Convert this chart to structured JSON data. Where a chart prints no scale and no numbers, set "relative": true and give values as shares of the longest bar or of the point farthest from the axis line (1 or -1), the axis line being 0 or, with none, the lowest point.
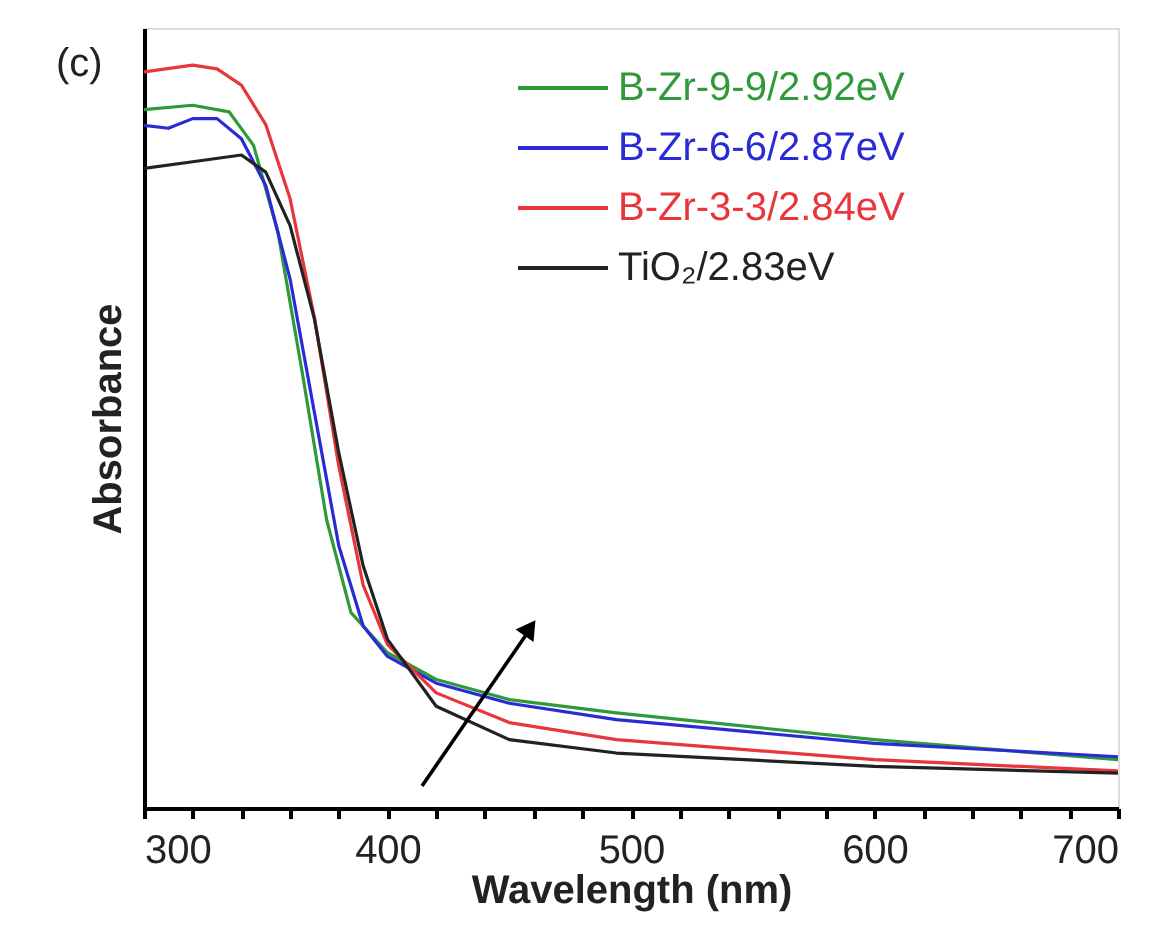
{
  "chart_data": {
    "type": "line",
    "xlabel": "Wavelength (nm)",
    "ylabel": "Absorbance",
    "relative": true,
    "annotations": [
      "(c)"
    ],
    "xlim": [
      300,
      700
    ],
    "xticks": [
      300,
      {
        "value": 320,
        "label": null
      },
      {
        "value": 340,
        "label": null
      },
      {
        "value": 360,
        "label": null
      },
      {
        "value": 380,
        "label": null
      },
      400,
      {
        "value": 420,
        "label": null
      },
      {
        "value": 440,
        "label": null
      },
      {
        "value": 460,
        "label": null
      },
      {
        "value": 480,
        "label": null
      },
      500,
      {
        "value": 520,
        "label": null
      },
      {
        "value": 540,
        "label": null
      },
      {
        "value": 560,
        "label": null
      },
      {
        "value": 580,
        "label": null
      },
      600,
      {
        "value": 620,
        "label": null
      },
      {
        "value": 640,
        "label": null
      },
      {
        "value": 660,
        "label": null
      },
      {
        "value": 680,
        "label": null
      },
      700
    ],
    "legend": "top right",
    "grid": false,
    "marker": "none",
    "line_style": "solid",
    "series": [
      {
        "name": "B-Zr-9-9/2.92eV",
        "color": "#2e9a3a",
        "x": [
          300,
          320,
          335,
          345,
          355,
          365,
          375,
          385,
          400,
          420,
          450,
          494,
          600,
          700
        ],
        "values": [
          0.94,
          0.946,
          0.937,
          0.892,
          0.775,
          0.586,
          0.388,
          0.263,
          0.209,
          0.173,
          0.146,
          0.128,
          0.092,
          0.065
        ]
      },
      {
        "name": "B-Zr-6-6/2.87eV",
        "color": "#2a2ad6",
        "x": [
          300,
          310,
          320,
          330,
          340,
          350,
          360,
          370,
          380,
          390,
          400,
          420,
          450,
          494,
          600,
          700
        ],
        "values": [
          0.919,
          0.915,
          0.928,
          0.928,
          0.901,
          0.838,
          0.712,
          0.532,
          0.353,
          0.245,
          0.204,
          0.168,
          0.141,
          0.119,
          0.087,
          0.069
        ]
      },
      {
        "name": "B-Zr-3-3/2.84eV",
        "color": "#e8363a",
        "x": [
          300,
          320,
          330,
          340,
          350,
          360,
          370,
          380,
          390,
          400,
          420,
          450,
          494,
          600,
          700
        ],
        "values": [
          0.991,
          1.0,
          0.995,
          0.973,
          0.92,
          0.82,
          0.66,
          0.46,
          0.3,
          0.22,
          0.155,
          0.115,
          0.092,
          0.065,
          0.05
        ]
      },
      {
        "name": "TiO₂/2.83eV",
        "color": "#222222",
        "x": [
          300,
          320,
          340,
          350,
          360,
          370,
          380,
          390,
          400,
          420,
          450,
          494,
          600,
          700
        ],
        "values": [
          0.861,
          0.87,
          0.879,
          0.856,
          0.784,
          0.658,
          0.478,
          0.326,
          0.227,
          0.137,
          0.092,
          0.074,
          0.056,
          0.047
        ]
      }
    ]
  }
}
